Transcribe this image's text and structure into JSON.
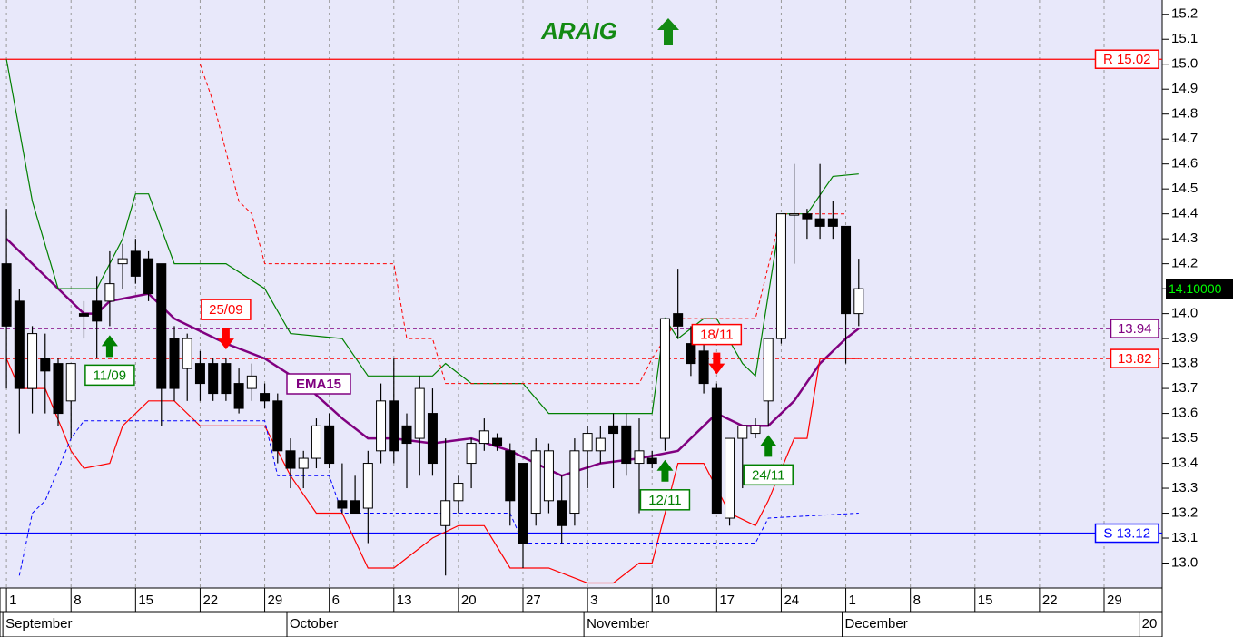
{
  "chart_data": {
    "type": "candlestick",
    "title": "ARAIG",
    "title_color": "#138a13",
    "x": [
      0,
      1,
      2,
      3,
      4,
      5,
      6,
      7,
      8,
      9,
      10,
      11,
      12,
      13,
      14,
      15,
      16,
      17,
      18,
      19,
      20,
      21,
      22,
      23,
      24,
      25,
      26,
      27,
      28,
      29,
      30,
      31,
      32,
      33,
      34,
      35,
      36,
      37,
      38,
      39,
      40,
      41,
      42,
      43,
      44,
      45,
      46,
      47,
      48,
      49,
      50,
      51,
      52,
      53,
      54,
      55,
      56,
      57,
      58,
      59,
      60,
      61,
      62,
      63,
      64,
      65,
      66
    ],
    "open": [
      14.2,
      14.05,
      13.7,
      13.82,
      13.8,
      13.65,
      14.0,
      14.05,
      14.05,
      14.2,
      14.25,
      14.22,
      14.2,
      13.9,
      13.78,
      13.8,
      13.8,
      13.8,
      13.72,
      13.7,
      13.68,
      13.65,
      13.45,
      13.38,
      13.42,
      13.55,
      13.25,
      13.25,
      13.22,
      13.45,
      13.65,
      13.55,
      13.5,
      13.6,
      13.15,
      13.25,
      13.4,
      13.48,
      13.5,
      13.45,
      13.4,
      13.2,
      13.25,
      13.25,
      13.2,
      13.45,
      13.45,
      13.55,
      13.55,
      13.4,
      13.42,
      13.5,
      14.0,
      13.88,
      13.85,
      13.7,
      13.18,
      13.5,
      13.52,
      13.65,
      13.9,
      14.4,
      14.4,
      14.38,
      14.38,
      14.35,
      14.0
    ],
    "high": [
      14.42,
      14.1,
      13.95,
      13.92,
      13.82,
      13.8,
      14.05,
      14.15,
      14.25,
      14.28,
      14.3,
      14.25,
      14.2,
      13.95,
      13.92,
      13.85,
      13.82,
      13.82,
      13.78,
      13.8,
      13.72,
      13.68,
      13.5,
      13.45,
      13.58,
      13.6,
      13.4,
      13.35,
      13.45,
      13.72,
      13.82,
      13.6,
      13.75,
      13.7,
      13.5,
      13.35,
      13.5,
      13.58,
      13.52,
      13.48,
      13.4,
      13.5,
      13.48,
      13.35,
      13.5,
      13.55,
      13.55,
      13.6,
      13.6,
      13.58,
      13.45,
      13.98,
      14.18,
      13.95,
      13.92,
      13.72,
      13.5,
      13.55,
      13.58,
      13.9,
      14.4,
      14.6,
      14.42,
      14.6,
      14.45,
      14.35,
      14.22
    ],
    "low": [
      13.7,
      13.52,
      13.6,
      13.6,
      13.55,
      13.5,
      13.9,
      13.82,
      13.95,
      14.1,
      14.12,
      14.05,
      13.55,
      13.65,
      13.65,
      13.65,
      13.65,
      13.65,
      13.6,
      13.65,
      13.62,
      13.4,
      13.3,
      13.3,
      13.38,
      13.38,
      13.2,
      13.2,
      13.08,
      13.4,
      13.4,
      13.3,
      13.35,
      13.35,
      12.95,
      13.2,
      13.3,
      13.45,
      13.45,
      13.15,
      12.98,
      13.15,
      13.2,
      13.08,
      13.15,
      13.3,
      13.4,
      13.3,
      13.35,
      13.2,
      13.38,
      13.45,
      13.9,
      13.75,
      13.68,
      13.2,
      13.15,
      13.3,
      13.5,
      13.55,
      13.88,
      14.2,
      14.3,
      14.3,
      14.3,
      13.8,
      13.95
    ],
    "close": [
      13.95,
      13.7,
      13.92,
      13.77,
      13.6,
      13.8,
      13.99,
      13.97,
      14.12,
      14.22,
      14.15,
      14.08,
      13.7,
      13.7,
      13.9,
      13.72,
      13.68,
      13.68,
      13.62,
      13.75,
      13.65,
      13.45,
      13.38,
      13.42,
      13.55,
      13.4,
      13.22,
      13.2,
      13.4,
      13.65,
      13.45,
      13.48,
      13.7,
      13.4,
      13.25,
      13.32,
      13.48,
      13.53,
      13.47,
      13.25,
      13.08,
      13.45,
      13.45,
      13.15,
      13.45,
      13.52,
      13.5,
      13.52,
      13.4,
      13.45,
      13.4,
      13.98,
      13.95,
      13.8,
      13.72,
      13.2,
      13.5,
      13.55,
      13.55,
      13.9,
      14.4,
      14.4,
      14.38,
      14.35,
      14.35,
      14.0,
      14.1
    ],
    "xlim": [
      -0.5,
      89.5
    ],
    "xticks": [
      {
        "value": 0,
        "label": "1"
      },
      {
        "value": 5,
        "label": "8"
      },
      {
        "value": 10,
        "label": "15"
      },
      {
        "value": 15,
        "label": "22"
      },
      {
        "value": 20,
        "label": "29"
      },
      {
        "value": 25,
        "label": "6"
      },
      {
        "value": 30,
        "label": "13"
      },
      {
        "value": 35,
        "label": "20"
      },
      {
        "value": 40,
        "label": "27"
      },
      {
        "value": 45,
        "label": "3"
      },
      {
        "value": 50,
        "label": "10"
      },
      {
        "value": 55,
        "label": "17"
      },
      {
        "value": 60,
        "label": "24"
      },
      {
        "value": 65,
        "label": "1"
      },
      {
        "value": 70,
        "label": "8"
      },
      {
        "value": 75,
        "label": "15"
      },
      {
        "value": 80,
        "label": "22"
      },
      {
        "value": 85,
        "label": "29"
      }
    ],
    "months": [
      {
        "x": 0,
        "label": "September"
      },
      {
        "x": 22,
        "label": "October"
      },
      {
        "x": 45,
        "label": "November"
      },
      {
        "x": 65,
        "label": "December"
      },
      {
        "x": 88,
        "label": "20"
      }
    ],
    "ylim": [
      12.9,
      15.25
    ],
    "yticks": [
      {
        "value": 13,
        "label": "13.0"
      },
      13.1,
      13.2,
      13.3,
      13.4,
      13.5,
      13.6,
      13.7,
      13.8,
      13.9,
      {
        "value": 14,
        "label": "14.0"
      },
      14.1,
      14.2,
      14.3,
      14.4,
      14.5,
      14.6,
      14.7,
      14.8,
      14.9,
      {
        "value": 15,
        "label": "15.0"
      },
      15.1,
      15.2
    ],
    "grid": true,
    "lines": [
      {
        "name": "EMA15",
        "color": "#800080",
        "width": 2.5,
        "x": [
          0,
          4,
          6,
          7,
          8,
          11,
          13,
          17,
          20,
          23,
          26,
          28,
          30,
          33,
          36,
          39,
          41,
          43,
          46,
          49,
          52,
          54,
          55,
          57,
          59,
          61,
          63,
          65,
          66
        ],
        "values": [
          14.3,
          14.1,
          14.0,
          14.0,
          14.05,
          14.08,
          13.98,
          13.88,
          13.82,
          13.72,
          13.58,
          13.5,
          13.5,
          13.48,
          13.5,
          13.45,
          13.4,
          13.35,
          13.4,
          13.42,
          13.45,
          13.55,
          13.6,
          13.55,
          13.55,
          13.65,
          13.8,
          13.9,
          13.94
        ]
      },
      {
        "color": "#008000",
        "width": 1.2,
        "x": [
          0,
          2,
          4,
          7,
          9,
          10,
          11,
          13,
          17,
          20,
          22,
          26,
          28,
          33,
          34,
          36,
          40,
          42,
          50,
          51,
          52,
          54,
          55,
          57,
          58,
          60,
          62,
          64,
          66
        ],
        "values": [
          15.02,
          14.45,
          14.1,
          14.1,
          14.3,
          14.48,
          14.48,
          14.2,
          14.2,
          14.1,
          13.92,
          13.9,
          13.75,
          13.75,
          13.8,
          13.72,
          13.72,
          13.6,
          13.6,
          13.98,
          13.9,
          13.98,
          13.98,
          13.8,
          13.75,
          14.4,
          14.4,
          14.55,
          14.56
        ]
      },
      {
        "color": "#ff0000",
        "width": 1.2,
        "x": [
          0,
          1,
          3,
          5,
          6,
          8,
          9,
          11,
          13,
          15,
          20,
          22,
          24,
          26,
          28,
          30,
          33,
          35,
          37,
          39,
          42,
          45,
          47,
          49,
          50,
          52,
          54,
          56,
          58,
          59,
          61,
          62,
          63,
          66
        ],
        "values": [
          13.82,
          13.7,
          13.7,
          13.45,
          13.38,
          13.4,
          13.55,
          13.65,
          13.65,
          13.55,
          13.55,
          13.35,
          13.2,
          13.2,
          12.98,
          12.98,
          13.1,
          13.15,
          13.15,
          12.98,
          12.98,
          12.92,
          12.92,
          13.0,
          13.0,
          13.4,
          13.4,
          13.2,
          13.15,
          13.25,
          13.5,
          13.5,
          13.82,
          13.82
        ]
      },
      {
        "color": "#ff0000",
        "width": 1,
        "dashed": true,
        "x": [
          15,
          16,
          18,
          19,
          20,
          30,
          31,
          33,
          34,
          49,
          50,
          52,
          58,
          60,
          65
        ],
        "values": [
          15.0,
          14.85,
          14.45,
          14.4,
          14.2,
          14.2,
          13.9,
          13.9,
          13.72,
          13.72,
          13.82,
          13.98,
          13.98,
          14.4,
          14.4
        ]
      },
      {
        "color": "#0000ff",
        "width": 1,
        "dashed": true,
        "x": [
          1,
          2,
          3,
          5,
          6,
          20,
          21,
          25,
          26,
          39,
          40,
          58,
          59,
          66
        ],
        "values": [
          12.95,
          13.2,
          13.25,
          13.5,
          13.57,
          13.57,
          13.35,
          13.35,
          13.2,
          13.2,
          13.08,
          13.08,
          13.18,
          13.2
        ]
      }
    ],
    "levels": [
      {
        "value": 15.02,
        "label": "R 15.02",
        "color": "#ff0000"
      },
      {
        "value": 13.12,
        "label": "S 13.12",
        "color": "#0000ff"
      },
      {
        "value": 13.94,
        "color": "#800080",
        "dashed": true
      },
      {
        "value": 13.82,
        "color": "#ff0000",
        "dashed": true
      }
    ],
    "last_price": {
      "value": 14.1,
      "label": "14.10000"
    },
    "signals": [
      {
        "x": 8,
        "label": "11/09",
        "direction": "up",
        "color": "#008000"
      },
      {
        "x": 17,
        "label": "25/09",
        "direction": "down",
        "color": "#ff0000"
      },
      {
        "x": 51,
        "label": "12/11",
        "direction": "up",
        "color": "#008000"
      },
      {
        "x": 55,
        "label": "18/11",
        "direction": "down",
        "color": "#ff0000"
      },
      {
        "x": 59,
        "label": "24/11",
        "direction": "up",
        "color": "#008000"
      }
    ]
  }
}
